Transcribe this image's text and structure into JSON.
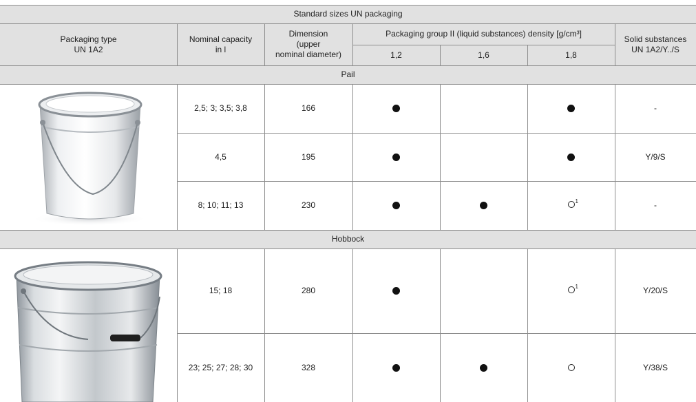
{
  "table": {
    "title": "Standard sizes UN packaging",
    "headers": {
      "packaging_type_line1": "Packaging type",
      "packaging_type_line2": "UN 1A2",
      "capacity_line1": "Nominal capacity",
      "capacity_line2": "in l",
      "dimension_line1": "Dimension",
      "dimension_line2": "(upper",
      "dimension_line3": "nominal diameter)",
      "group": "Packaging group II (liquid substances) density [g/cm³]",
      "density_1": "1,2",
      "density_2": "1,6",
      "density_3": "1,8",
      "solid_line1": "Solid substances",
      "solid_line2": "UN 1A2/Y../S"
    },
    "sections": [
      {
        "name": "Pail",
        "image": "silver-pail-with-lid-and-handle",
        "rows": [
          {
            "capacity": "2,5; 3; 3,5; 3,8",
            "dimension": "166",
            "d12": "filled",
            "d16": "",
            "d18": "filled",
            "solid": "-"
          },
          {
            "capacity": "4,5",
            "dimension": "195",
            "d12": "filled",
            "d16": "",
            "d18": "filled",
            "solid": "Y/9/S"
          },
          {
            "capacity": "8; 10; 11; 13",
            "dimension": "230",
            "d12": "filled",
            "d16": "filled",
            "d18": "open-1",
            "solid": "-"
          }
        ]
      },
      {
        "name": "Hobbock",
        "image": "silver-hobbock-drum-with-lid",
        "rows": [
          {
            "capacity": "15; 18",
            "dimension": "280",
            "d12": "filled",
            "d16": "",
            "d18": "open-1",
            "solid": "Y/20/S"
          },
          {
            "capacity": "23; 25; 27; 28; 30",
            "dimension": "328",
            "d12": "filled",
            "d16": "filled",
            "d18": "open",
            "solid": "Y/38/S"
          }
        ]
      }
    ],
    "footnote_mark": "1"
  },
  "colors": {
    "header_bg": "#e1e1e1",
    "border": "#8c8c8c",
    "mark": "#111111"
  }
}
